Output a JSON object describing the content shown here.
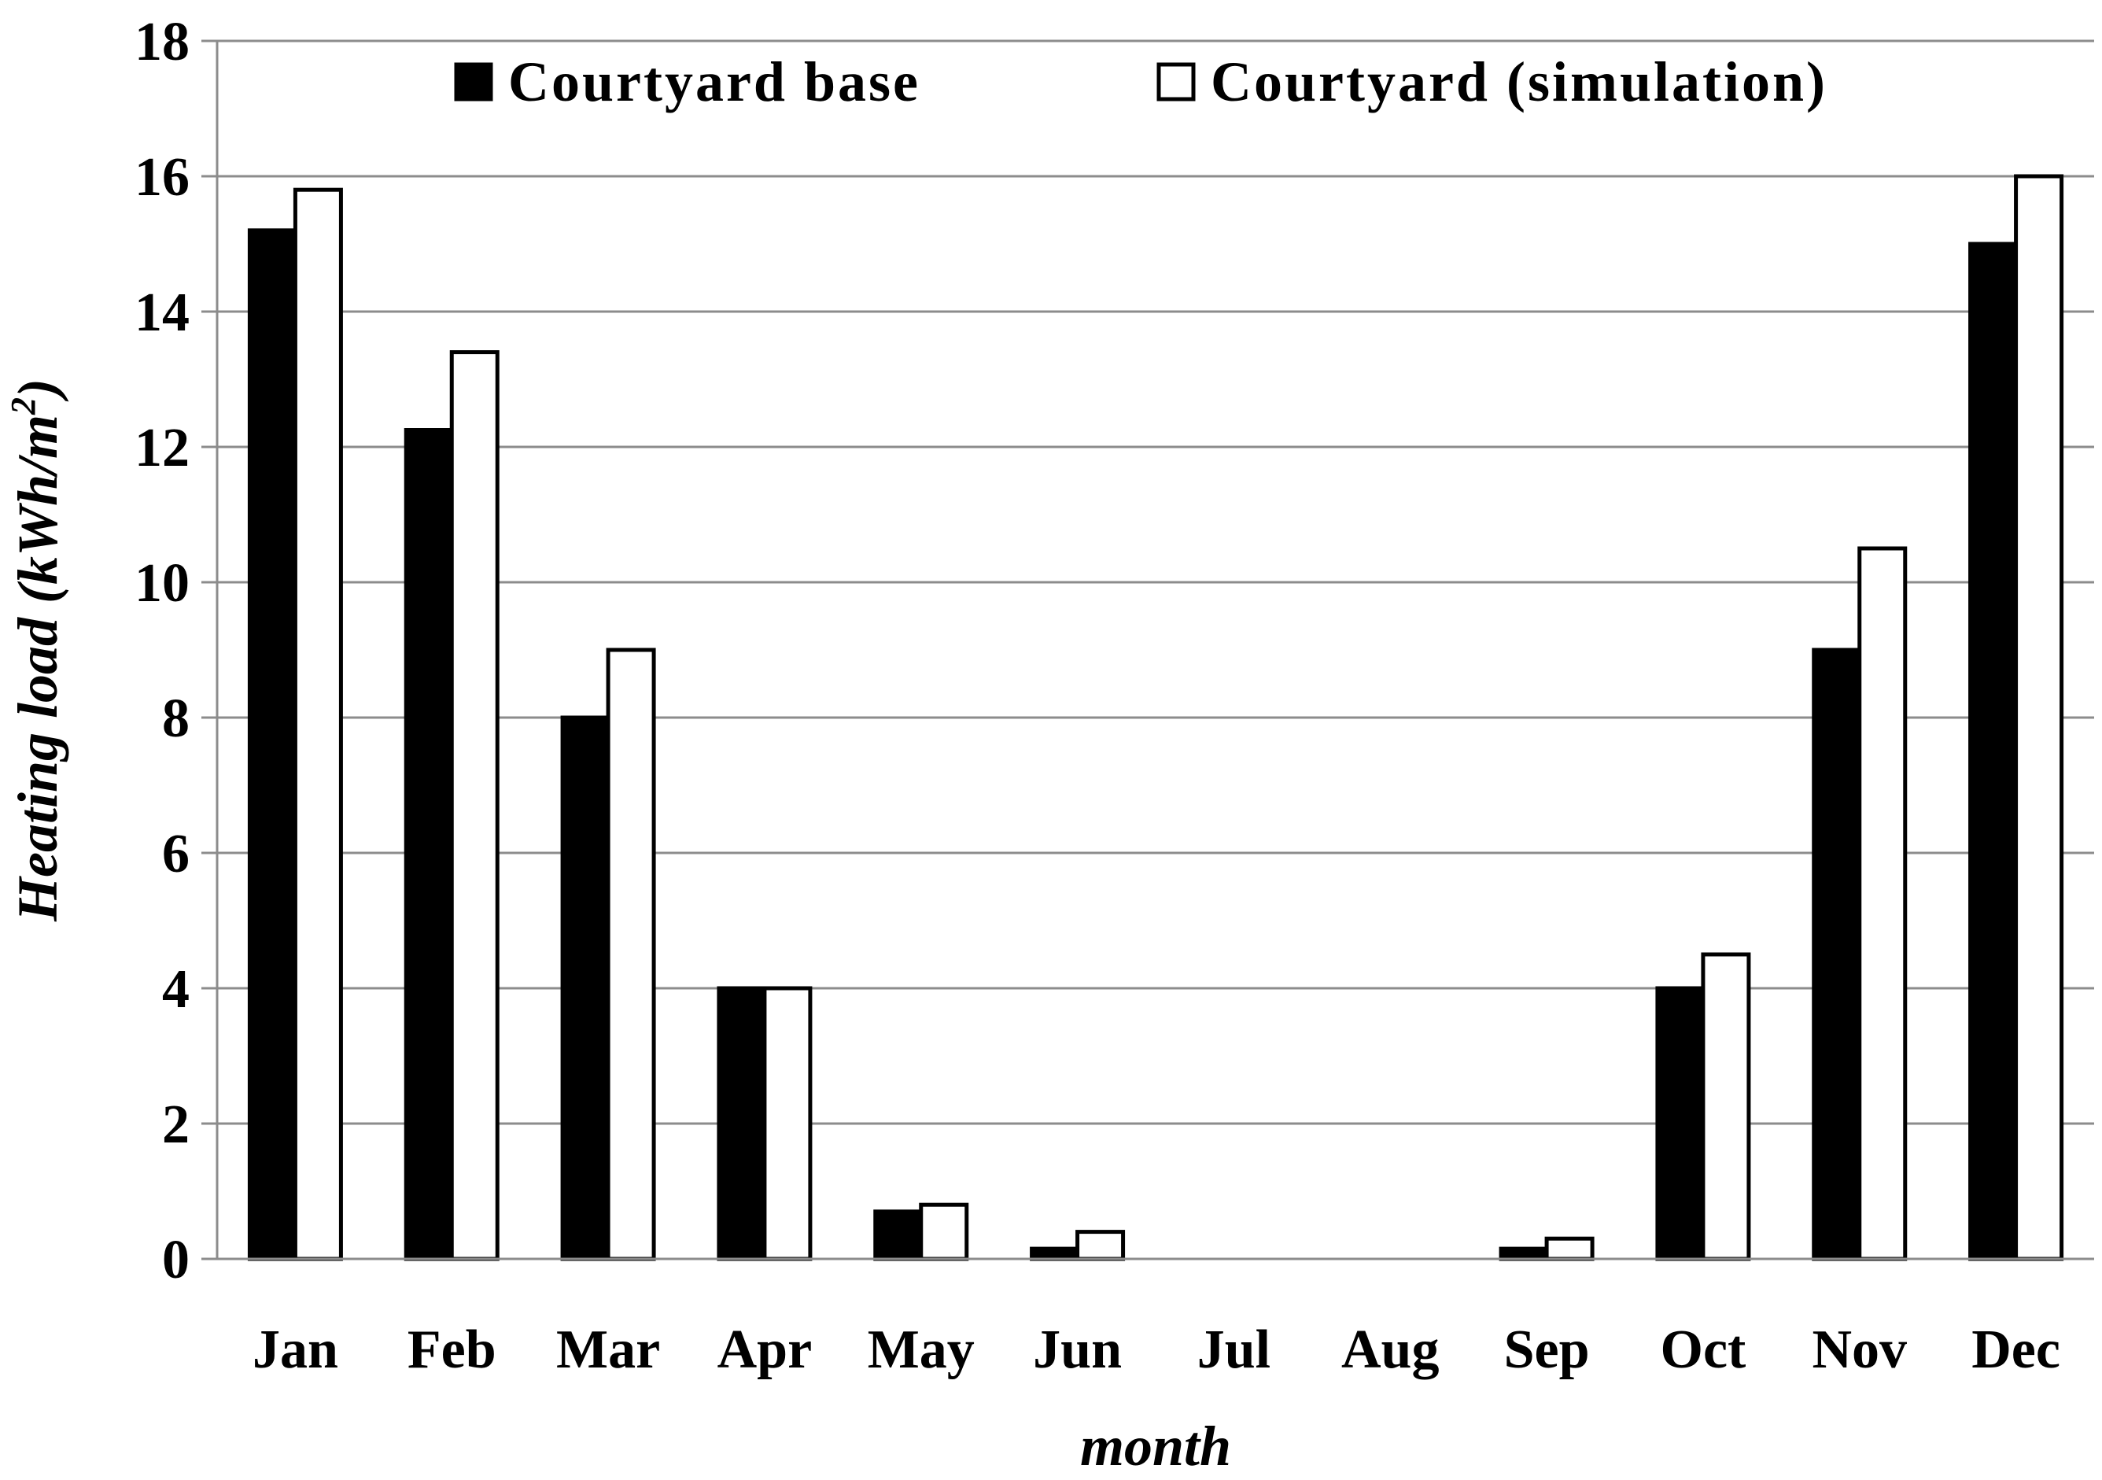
{
  "chart_data": {
    "type": "bar",
    "title": "",
    "xlabel": "month",
    "ylabel": "Heating load (kWh/m",
    "ylabel_superscript": "2",
    "ylabel_close": ")",
    "ylim": [
      0,
      18
    ],
    "yticks": [
      0,
      2,
      4,
      6,
      8,
      10,
      12,
      14,
      16,
      18
    ],
    "grid": true,
    "legend_position": "top",
    "categories": [
      "Jan",
      "Feb",
      "Mar",
      "Apr",
      "May",
      "Jun",
      "Jul",
      "Aug",
      "Sep",
      "Oct",
      "Nov",
      "Dec"
    ],
    "series": [
      {
        "name": "Courtyard base",
        "fill": "#000000",
        "values": [
          15.2,
          12.25,
          8.0,
          4.0,
          0.7,
          0.15,
          0,
          0,
          0.15,
          4.0,
          9.0,
          15.0
        ]
      },
      {
        "name": "Courtyard (simulation)",
        "fill": "#ffffff",
        "values": [
          15.8,
          13.4,
          9.0,
          4.0,
          0.8,
          0.4,
          0,
          0,
          0.3,
          4.5,
          10.5,
          16.0
        ]
      }
    ]
  }
}
